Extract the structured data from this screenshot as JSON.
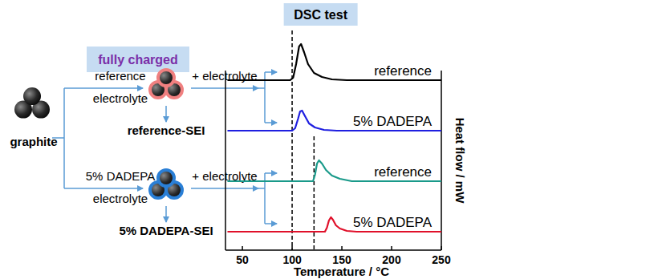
{
  "header": {
    "title": "DSC test"
  },
  "diagram": {
    "start": "graphite",
    "stage": "fully charged",
    "branches": [
      {
        "electrolyte": [
          "reference",
          "electrolyte"
        ],
        "product": "reference-SEI",
        "step": "+ electrolyte",
        "color": "#f08080"
      },
      {
        "electrolyte": [
          "5% DADEPA",
          "electrolyte"
        ],
        "product": "5% DADEPA-SEI",
        "step": "+ electrolyte",
        "color": "#2a7fd6"
      }
    ]
  },
  "chart_data": {
    "type": "line",
    "x_label": "Temperature / °C",
    "y_label": "Heat flow / mW",
    "xlim": [
      33,
      250
    ],
    "xticks": [
      50,
      100,
      150,
      200,
      250
    ],
    "ylim": [
      0,
      60
    ],
    "tick_labels": "x",
    "reference_lines": [
      {
        "x": 100
      },
      {
        "x": 122
      }
    ],
    "series": [
      {
        "name": "reference",
        "color": "#000000",
        "x": [
          35,
          98,
          101,
          104,
          107,
          109,
          112,
          116,
          122,
          130,
          140,
          155,
          250
        ],
        "values": [
          0,
          0,
          3,
          20,
          42,
          45,
          35,
          20,
          9,
          4,
          1,
          0,
          0
        ]
      },
      {
        "name": "5% DADEPA",
        "color": "#1f1fe0",
        "x": [
          35,
          100,
          103,
          106,
          108,
          110,
          113,
          117,
          123,
          132,
          145,
          250
        ],
        "values": [
          0,
          0,
          3,
          15,
          24,
          25,
          18,
          9,
          4,
          1,
          0,
          0
        ]
      },
      {
        "name": "reference",
        "color": "#1a9a8a",
        "x": [
          35,
          121,
          123,
          125,
          127,
          130,
          134,
          140,
          148,
          160,
          250
        ],
        "values": [
          0,
          0,
          8,
          22,
          26,
          22,
          14,
          7,
          3,
          0,
          0
        ]
      },
      {
        "name": "5% DADEPA",
        "color": "#e0102a",
        "x": [
          35,
          133,
          135,
          137,
          139,
          141,
          144,
          148,
          155,
          165,
          250
        ],
        "values": [
          0,
          0,
          5,
          14,
          18,
          15,
          8,
          4,
          1,
          0,
          0
        ]
      }
    ]
  }
}
